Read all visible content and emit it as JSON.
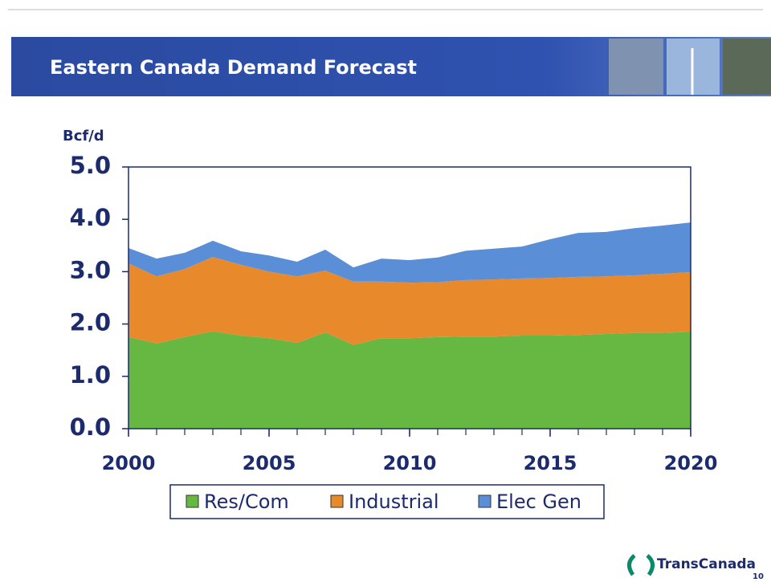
{
  "header": {
    "title": "Eastern Canada Demand Forecast"
  },
  "chart_data": {
    "type": "stacked-area",
    "y_label": "Bcf/d",
    "x": [
      2000,
      2001,
      2002,
      2003,
      2004,
      2005,
      2006,
      2007,
      2008,
      2009,
      2010,
      2011,
      2012,
      2013,
      2014,
      2015,
      2016,
      2017,
      2018,
      2019,
      2020
    ],
    "series": [
      {
        "name": "Res/Com",
        "color": "#67b843",
        "values": [
          1.75,
          1.63,
          1.75,
          1.86,
          1.78,
          1.73,
          1.64,
          1.84,
          1.6,
          1.73,
          1.73,
          1.75,
          1.76,
          1.76,
          1.78,
          1.78,
          1.79,
          1.81,
          1.83,
          1.83,
          1.85
        ]
      },
      {
        "name": "Industrial",
        "color": "#e8892c",
        "values": [
          1.41,
          1.28,
          1.3,
          1.42,
          1.35,
          1.27,
          1.27,
          1.18,
          1.21,
          1.08,
          1.06,
          1.05,
          1.08,
          1.09,
          1.09,
          1.1,
          1.11,
          1.1,
          1.1,
          1.13,
          1.14
        ]
      },
      {
        "name": "Elec Gen",
        "color": "#5a8fd8",
        "values": [
          0.29,
          0.34,
          0.31,
          0.31,
          0.26,
          0.31,
          0.28,
          0.4,
          0.27,
          0.44,
          0.43,
          0.47,
          0.56,
          0.59,
          0.61,
          0.74,
          0.84,
          0.85,
          0.9,
          0.92,
          0.95
        ]
      }
    ],
    "xlim": [
      2000,
      2020
    ],
    "xticks": [
      2000,
      2005,
      2010,
      2015,
      2020
    ],
    "ylim": [
      0,
      5
    ],
    "yticks": [
      {
        "value": 0,
        "label": "0.0"
      },
      {
        "value": 1,
        "label": "1.0"
      },
      {
        "value": 2,
        "label": "2.0"
      },
      {
        "value": 3,
        "label": "3.0"
      },
      {
        "value": 4,
        "label": "4.0"
      },
      {
        "value": 5,
        "label": "5.0"
      }
    ]
  },
  "footer": {
    "logo": "TransCanada",
    "page": "10"
  }
}
